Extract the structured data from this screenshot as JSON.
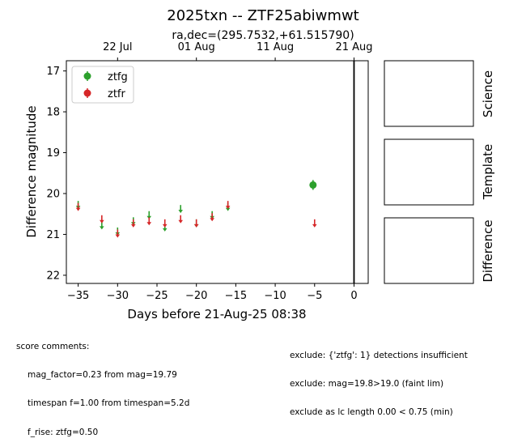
{
  "chart_data": {
    "type": "scatter",
    "title": "2025txn -- ZTF25abiwmwt",
    "subtitle": "ra,dec=(295.7532,+61.515790)",
    "xlabel": "Days before 21-Aug-25 08:38",
    "ylabel": "Difference magnitude",
    "xlim": [
      -36.5,
      1.8
    ],
    "ylim": [
      22.2,
      16.75
    ],
    "y_inverted": true,
    "x_ticks": [
      -35,
      -30,
      -25,
      -20,
      -15,
      -10,
      -5,
      0
    ],
    "x_tick_labels": [
      "−35",
      "−30",
      "−25",
      "−20",
      "−15",
      "−10",
      "−5",
      "0"
    ],
    "y_ticks": [
      17,
      18,
      19,
      20,
      21,
      22
    ],
    "top_axis_ticks": [
      {
        "x": -30,
        "label": "22 Jul"
      },
      {
        "x": -20,
        "label": "01 Aug"
      },
      {
        "x": -10,
        "label": "11 Aug"
      },
      {
        "x": 0,
        "label": "21 Aug"
      }
    ],
    "reference_line_x": 0,
    "legend": {
      "position": "top-left",
      "entries": [
        "ztfg",
        "ztfr"
      ]
    },
    "series": [
      {
        "name": "ztfg",
        "color": "#2ca02c",
        "detections": [
          {
            "x": -5.2,
            "y": 19.79,
            "err": 0.12
          }
        ],
        "upper_limits": [
          {
            "x": -35.0,
            "y": 20.3
          },
          {
            "x": -32.0,
            "y": 20.8
          },
          {
            "x": -30.0,
            "y": 20.95
          },
          {
            "x": -28.0,
            "y": 20.7
          },
          {
            "x": -26.0,
            "y": 20.55
          },
          {
            "x": -24.0,
            "y": 20.85
          },
          {
            "x": -22.0,
            "y": 20.4
          },
          {
            "x": -20.0,
            "y": 20.75
          },
          {
            "x": -18.0,
            "y": 20.55
          },
          {
            "x": -16.0,
            "y": 20.35
          }
        ]
      },
      {
        "name": "ztfr",
        "color": "#d62728",
        "detections": [],
        "upper_limits": [
          {
            "x": -35.0,
            "y": 20.35
          },
          {
            "x": -32.0,
            "y": 20.65
          },
          {
            "x": -30.0,
            "y": 21.0
          },
          {
            "x": -28.0,
            "y": 20.75
          },
          {
            "x": -26.0,
            "y": 20.7
          },
          {
            "x": -24.0,
            "y": 20.75
          },
          {
            "x": -22.0,
            "y": 20.65
          },
          {
            "x": -20.0,
            "y": 20.75
          },
          {
            "x": -18.0,
            "y": 20.6
          },
          {
            "x": -16.0,
            "y": 20.3
          },
          {
            "x": -5.0,
            "y": 20.75
          }
        ]
      }
    ]
  },
  "cutouts": [
    "Science",
    "Template",
    "Difference"
  ],
  "score_comments": {
    "heading": "score comments:",
    "lines": [
      "mag_factor=0.23 from mag=19.79",
      "timespan f=1.00 from timespan=5.2d",
      "f_rise: ztfg=0.50"
    ]
  },
  "exclude_notes": [
    "exclude: {'ztfg': 1} detections insufficient",
    "exclude: mag=19.8>19.0 (faint lim)",
    "exclude as lc length 0.00 < 0.75 (min)"
  ]
}
